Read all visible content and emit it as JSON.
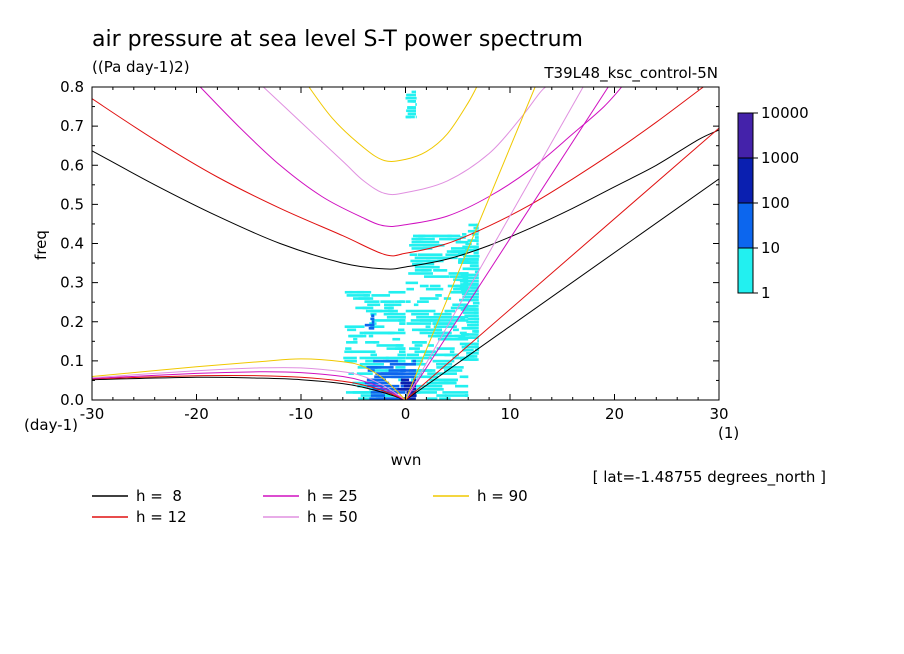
{
  "header": {
    "title": "air pressure at sea level S-T power spectrum",
    "units": "((Pa day-1)2)",
    "experiment": "T39L48_ksc_control-5N"
  },
  "footer": {
    "lat_note": "[ lat=-1.48755 degrees_north ]"
  },
  "chart_data": {
    "type": "heatmap",
    "title": "air pressure at sea level S-T power spectrum",
    "xlabel": "wvn",
    "ylabel": "freq",
    "x_unit_label": "(1)",
    "y_unit_label": "(day-1)",
    "xlim": [
      -30,
      30
    ],
    "ylim": [
      0,
      0.8
    ],
    "x_ticks": [
      "-30",
      "-20",
      "-10",
      "0",
      "10",
      "20",
      "30"
    ],
    "y_ticks": [
      "0.0",
      "0.1",
      "0.2",
      "0.3",
      "0.4",
      "0.5",
      "0.6",
      "0.7",
      "0.8"
    ],
    "colorbar": {
      "labels": [
        "10000",
        "1000",
        "100",
        "10",
        "1"
      ],
      "colors": [
        "#4422aa",
        "#0a1fb0",
        "#0c66ee",
        "#22f0f0"
      ]
    },
    "legend": [
      {
        "label": "h =  8",
        "color": "#000000"
      },
      {
        "label": "h = 12",
        "color": "#e01010"
      },
      {
        "label": "h = 25",
        "color": "#d010c0"
      },
      {
        "label": "h = 50",
        "color": "#e090e0"
      },
      {
        "label": "h = 90",
        "color": "#f0c800"
      }
    ],
    "series": [
      {
        "name": "h =  8",
        "color": "#000000",
        "kelvin": [
          [
            0,
            0
          ],
          [
            30,
            0.565
          ]
        ],
        "rossby": [
          [
            -30,
            0.052
          ],
          [
            -20,
            0.058
          ],
          [
            -14,
            0.056
          ],
          [
            -10,
            0.052
          ],
          [
            -6,
            0.042
          ],
          [
            -4,
            0.032
          ],
          [
            -2,
            0.018
          ],
          [
            0,
            0
          ]
        ],
        "gravity": [
          [
            -30,
            0.637
          ],
          [
            -24,
            0.55
          ],
          [
            -18,
            0.47
          ],
          [
            -12,
            0.4
          ],
          [
            -6,
            0.35
          ],
          [
            -2,
            0.335
          ],
          [
            0,
            0.34
          ],
          [
            4,
            0.36
          ],
          [
            8,
            0.395
          ],
          [
            12,
            0.44
          ],
          [
            16,
            0.49
          ],
          [
            20,
            0.545
          ],
          [
            24,
            0.6
          ],
          [
            28,
            0.665
          ],
          [
            30,
            0.69
          ]
        ]
      },
      {
        "name": "h = 12",
        "color": "#e01010",
        "kelvin": [
          [
            0,
            0
          ],
          [
            30,
            0.695
          ]
        ],
        "rossby": [
          [
            -30,
            0.054
          ],
          [
            -20,
            0.062
          ],
          [
            -14,
            0.062
          ],
          [
            -10,
            0.058
          ],
          [
            -6,
            0.048
          ],
          [
            -4,
            0.038
          ],
          [
            -2,
            0.022
          ],
          [
            0,
            0
          ]
        ],
        "gravity": [
          [
            -30,
            0.77
          ],
          [
            -24,
            0.665
          ],
          [
            -18,
            0.57
          ],
          [
            -12,
            0.49
          ],
          [
            -6,
            0.42
          ],
          [
            -2,
            0.372
          ],
          [
            0,
            0.375
          ],
          [
            4,
            0.4
          ],
          [
            8,
            0.445
          ],
          [
            12,
            0.5
          ],
          [
            16,
            0.565
          ],
          [
            20,
            0.635
          ],
          [
            24,
            0.71
          ],
          [
            28,
            0.79
          ],
          [
            29,
            0.81
          ]
        ]
      },
      {
        "name": "h = 25",
        "color": "#d010c0",
        "kelvin": [
          [
            0,
            0
          ],
          [
            19.4,
            0.8
          ]
        ],
        "rossby": [
          [
            -30,
            0.055
          ],
          [
            -20,
            0.068
          ],
          [
            -14,
            0.072
          ],
          [
            -10,
            0.07
          ],
          [
            -6,
            0.06
          ],
          [
            -4,
            0.048
          ],
          [
            -2,
            0.028
          ],
          [
            0,
            0
          ]
        ],
        "gravity": [
          [
            -20,
            0.81
          ],
          [
            -16,
            0.7
          ],
          [
            -12,
            0.6
          ],
          [
            -8,
            0.52
          ],
          [
            -4,
            0.465
          ],
          [
            -2,
            0.445
          ],
          [
            0,
            0.448
          ],
          [
            4,
            0.47
          ],
          [
            8,
            0.52
          ],
          [
            12,
            0.59
          ],
          [
            16,
            0.68
          ],
          [
            19,
            0.75
          ],
          [
            21,
            0.81
          ]
        ]
      },
      {
        "name": "h = 50",
        "color": "#e090e0",
        "kelvin": [
          [
            0,
            0
          ],
          [
            17,
            0.8
          ]
        ],
        "rossby": [
          [
            -30,
            0.057
          ],
          [
            -20,
            0.075
          ],
          [
            -14,
            0.082
          ],
          [
            -10,
            0.082
          ],
          [
            -6,
            0.072
          ],
          [
            -4,
            0.06
          ],
          [
            -2,
            0.035
          ],
          [
            0,
            0
          ]
        ],
        "gravity": [
          [
            -14,
            0.81
          ],
          [
            -10,
            0.71
          ],
          [
            -6,
            0.61
          ],
          [
            -4,
            0.56
          ],
          [
            -2,
            0.528
          ],
          [
            0,
            0.53
          ],
          [
            4,
            0.56
          ],
          [
            8,
            0.63
          ],
          [
            11,
            0.72
          ],
          [
            13,
            0.79
          ],
          [
            14,
            0.81
          ]
        ]
      },
      {
        "name": "h = 90",
        "color": "#f0c800",
        "kelvin": [
          [
            0,
            0
          ],
          [
            12.4,
            0.8
          ]
        ],
        "rossby": [
          [
            -30,
            0.06
          ],
          [
            -20,
            0.085
          ],
          [
            -14,
            0.098
          ],
          [
            -10,
            0.105
          ],
          [
            -6,
            0.098
          ],
          [
            -4,
            0.085
          ],
          [
            -2,
            0.052
          ],
          [
            0,
            0
          ]
        ],
        "gravity": [
          [
            -9.5,
            0.81
          ],
          [
            -7,
            0.72
          ],
          [
            -4,
            0.645
          ],
          [
            -2,
            0.612
          ],
          [
            0,
            0.615
          ],
          [
            2,
            0.635
          ],
          [
            4,
            0.68
          ],
          [
            6,
            0.76
          ],
          [
            7,
            0.81
          ]
        ]
      }
    ],
    "spectrum_regions": [
      {
        "x": [
          -6,
          0
        ],
        "y": [
          0.0,
          0.28
        ],
        "level": "1-10"
      },
      {
        "x": [
          0,
          6
        ],
        "y": [
          0.0,
          0.42
        ],
        "level": "1-10"
      },
      {
        "x": [
          5,
          7
        ],
        "y": [
          0.1,
          0.45
        ],
        "level": "1-10"
      },
      {
        "x": [
          -4,
          1
        ],
        "y": [
          0.0,
          0.1
        ],
        "level": "10-100"
      },
      {
        "x": [
          -4,
          -3
        ],
        "y": [
          0.18,
          0.22
        ],
        "level": "10-100"
      },
      {
        "x": [
          -1,
          1
        ],
        "y": [
          0.0,
          0.05
        ],
        "level": "100-1000"
      },
      {
        "x": [
          0,
          1
        ],
        "y": [
          0.72,
          0.79
        ],
        "level": "1-10"
      }
    ]
  }
}
